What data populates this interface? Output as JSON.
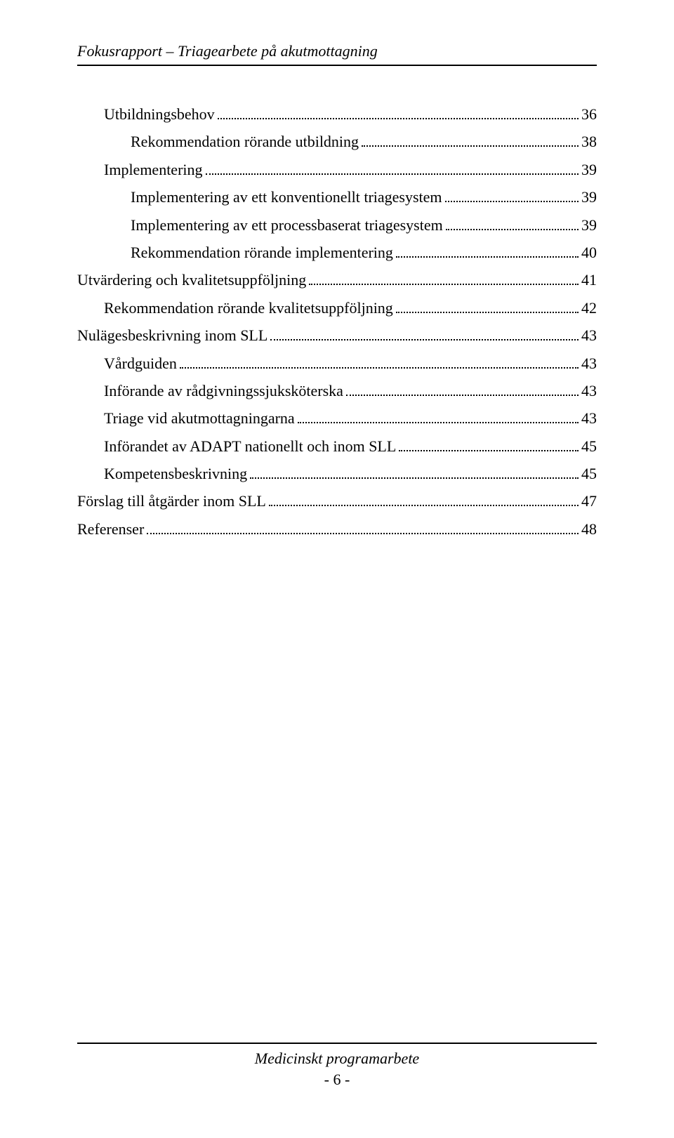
{
  "header": {
    "running_title": "Fokusrapport – Triagearbete på akutmottagning"
  },
  "toc": {
    "entries": [
      {
        "label": "Utbildningsbehov",
        "page": "36",
        "indent": 1
      },
      {
        "label": "Rekommendation rörande utbildning",
        "page": "38",
        "indent": 2
      },
      {
        "label": "Implementering",
        "page": "39",
        "indent": 1
      },
      {
        "label": "Implementering av ett konventionellt triagesystem",
        "page": "39",
        "indent": 2
      },
      {
        "label": "Implementering av ett processbaserat triagesystem",
        "page": "39",
        "indent": 2
      },
      {
        "label": "Rekommendation rörande implementering",
        "page": "40",
        "indent": 2
      },
      {
        "label": "Utvärdering och kvalitetsuppföljning",
        "page": "41",
        "indent": 0
      },
      {
        "label": "Rekommendation rörande kvalitetsuppföljning",
        "page": "42",
        "indent": 1
      },
      {
        "label": "Nulägesbeskrivning inom SLL",
        "page": "43",
        "indent": 0
      },
      {
        "label": "Vårdguiden",
        "page": "43",
        "indent": 1
      },
      {
        "label": "Införande av rådgivningssjuksköterska",
        "page": "43",
        "indent": 1
      },
      {
        "label": "Triage vid akutmottagningarna",
        "page": "43",
        "indent": 1
      },
      {
        "label": "Införandet av ADAPT nationellt och  inom SLL",
        "page": "45",
        "indent": 1
      },
      {
        "label": "Kompetensbeskrivning",
        "page": "45",
        "indent": 1
      },
      {
        "label": "Förslag till åtgärder inom SLL",
        "page": "47",
        "indent": 0
      },
      {
        "label": "Referenser",
        "page": "48",
        "indent": 0
      }
    ]
  },
  "footer": {
    "title": "Medicinskt programarbete",
    "page_number": "- 6 -"
  }
}
